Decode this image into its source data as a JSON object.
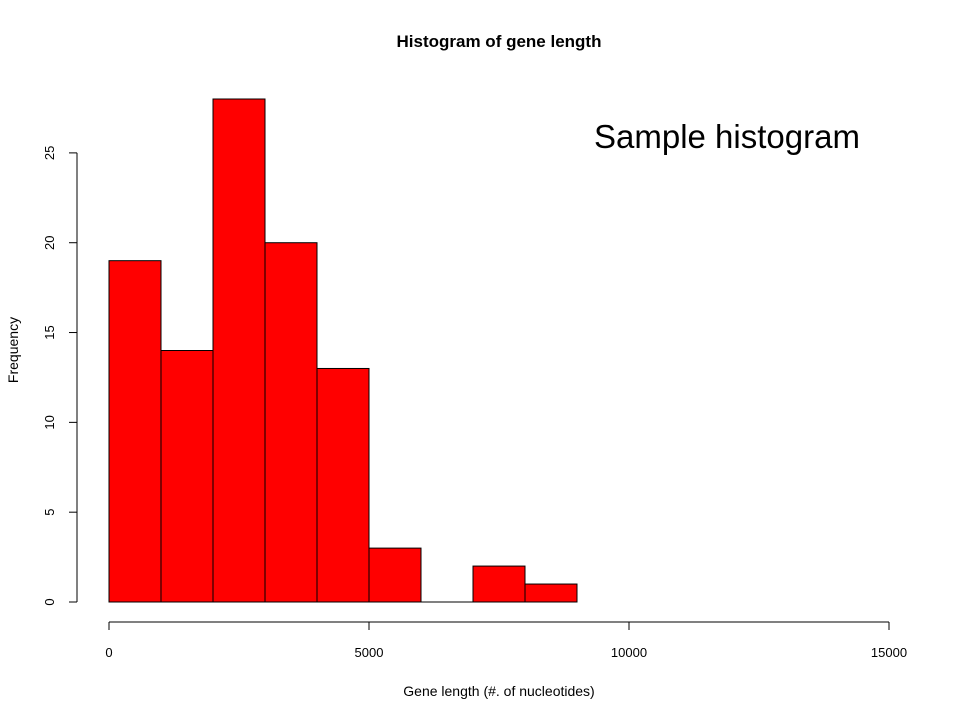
{
  "caption": "Sample histogram",
  "chart_data": {
    "type": "bar",
    "subtype": "histogram",
    "title": "Histogram of gene length",
    "xlabel": "Gene length (#. of nucleotides)",
    "ylabel": "Frequency",
    "bin_edges": [
      0,
      1000,
      2000,
      3000,
      4000,
      5000,
      6000,
      7000,
      8000,
      9000
    ],
    "values": [
      19,
      14,
      28,
      20,
      13,
      3,
      0,
      2,
      1
    ],
    "xlim": [
      0,
      15000
    ],
    "ylim": [
      0,
      28
    ],
    "x_ticks": [
      0,
      5000,
      10000,
      15000
    ],
    "y_ticks": [
      0,
      5,
      10,
      15,
      20,
      25
    ],
    "bar_color": "#ff0000",
    "edge_color": "#000000",
    "grid": false,
    "legend": "none"
  }
}
